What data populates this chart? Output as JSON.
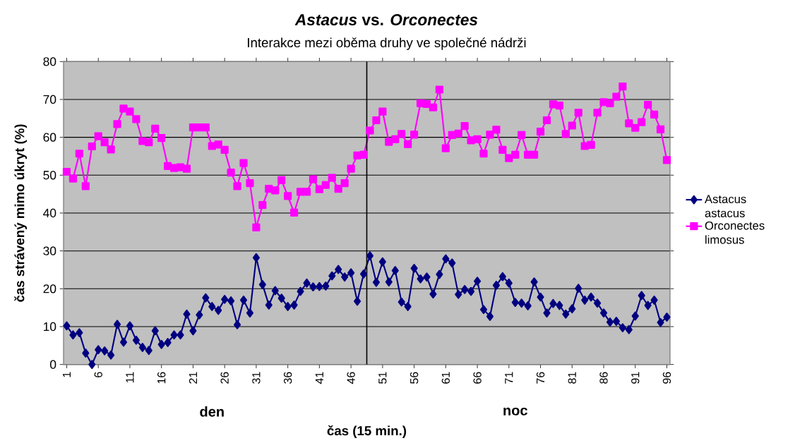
{
  "chart_data": {
    "type": "line",
    "title": "*Astacus* vs. *Orconectes*",
    "subtitle": "Interakce mezi oběma druhy ve společné nádrži",
    "xlabel": "čas (15 min.)",
    "ylabel": "čas strávený mimo úkryt (%)",
    "annotations": [
      "den",
      "noc"
    ],
    "x": [
      1,
      2,
      3,
      4,
      5,
      6,
      7,
      8,
      9,
      10,
      11,
      12,
      13,
      14,
      15,
      16,
      17,
      18,
      19,
      20,
      21,
      22,
      23,
      24,
      25,
      26,
      27,
      28,
      29,
      30,
      31,
      32,
      33,
      34,
      35,
      36,
      37,
      38,
      39,
      40,
      41,
      42,
      43,
      44,
      45,
      46,
      47,
      48,
      49,
      50,
      51,
      52,
      53,
      54,
      55,
      56,
      57,
      58,
      59,
      60,
      61,
      62,
      63,
      64,
      65,
      66,
      67,
      68,
      69,
      70,
      71,
      72,
      73,
      74,
      75,
      76,
      77,
      78,
      79,
      80,
      81,
      82,
      83,
      84,
      85,
      86,
      87,
      88,
      89,
      90,
      91,
      92,
      93,
      94,
      95,
      96
    ],
    "xlim": [
      0.5,
      96.5
    ],
    "xticks": [
      1,
      6,
      11,
      16,
      21,
      26,
      31,
      36,
      41,
      46,
      51,
      56,
      61,
      66,
      71,
      76,
      81,
      86,
      91,
      96
    ],
    "ylim": [
      0,
      80
    ],
    "yticks": [
      0,
      10,
      20,
      30,
      40,
      50,
      60,
      70,
      80
    ],
    "grid": "y",
    "legend": "right",
    "ref_lines": [
      {
        "axis": "x",
        "value": 48.5,
        "color": "#000000"
      }
    ],
    "series": [
      {
        "name": "Astacus astacus",
        "color": "#000080",
        "marker": "diamond",
        "values": [
          10.2,
          7.8,
          8.4,
          3.0,
          0,
          3.9,
          3.6,
          2.5,
          10.6,
          5.9,
          10.2,
          6.4,
          4.5,
          3.7,
          8.9,
          5.3,
          5.8,
          7.8,
          7.8,
          13.3,
          8.9,
          13.1,
          17.6,
          15.3,
          14.3,
          17.2,
          16.8,
          10.5,
          17.0,
          13.6,
          28.2,
          21.1,
          15.7,
          19.5,
          17.5,
          15.3,
          15.7,
          19.3,
          21.5,
          20.5,
          20.6,
          20.7,
          23.4,
          25.1,
          23.1,
          24.2,
          16.7,
          23.9,
          28.7,
          21.7,
          27.1,
          21.8,
          24.8,
          16.5,
          15.3,
          25.4,
          22.6,
          23.1,
          18.6,
          23.8,
          27.9,
          26.8,
          18.5,
          19.8,
          19.3,
          22.0,
          14.5,
          12.7,
          20.9,
          23.2,
          21.5,
          16.4,
          16.2,
          15.5,
          21.8,
          17.8,
          13.6,
          16.1,
          15.6,
          13.3,
          14.7,
          20.1,
          17.0,
          17.8,
          16.2,
          13.6,
          11.2,
          11.4,
          9.7,
          9.2,
          12.8,
          18.2,
          15.6,
          17.0,
          11.1,
          12.5
        ]
      },
      {
        "name": "Orconectes limosus",
        "color": "#ff00ff",
        "marker": "square",
        "values": [
          50.9,
          49.1,
          55.7,
          47.1,
          57.6,
          60.3,
          58.7,
          56.8,
          63.5,
          67.6,
          66.8,
          64.8,
          59.0,
          58.7,
          62.3,
          59.8,
          52.4,
          51.9,
          52.1,
          51.7,
          62.6,
          62.6,
          62.6,
          57.7,
          58.1,
          56.7,
          50.7,
          47.1,
          53.2,
          47.9,
          36.2,
          42.1,
          46.4,
          46.0,
          48.7,
          44.5,
          40.1,
          45.6,
          45.6,
          48.9,
          46.3,
          47.4,
          49.3,
          46.4,
          47.9,
          51.7,
          55.2,
          55.4,
          61.8,
          64.5,
          66.8,
          58.8,
          59.5,
          60.9,
          58.2,
          60.7,
          69.0,
          68.8,
          67.9,
          72.6,
          57.1,
          60.6,
          61.0,
          63.0,
          59.2,
          59.5,
          55.7,
          60.7,
          62.0,
          56.7,
          54.5,
          55.4,
          60.6,
          55.4,
          55.4,
          61.5,
          64.5,
          68.7,
          68.4,
          60.9,
          63.1,
          66.5,
          57.7,
          58.0,
          66.5,
          69.3,
          69.0,
          70.7,
          73.4,
          63.7,
          62.5,
          64.0,
          68.6,
          66.0,
          62.1,
          54.0
        ]
      }
    ]
  }
}
